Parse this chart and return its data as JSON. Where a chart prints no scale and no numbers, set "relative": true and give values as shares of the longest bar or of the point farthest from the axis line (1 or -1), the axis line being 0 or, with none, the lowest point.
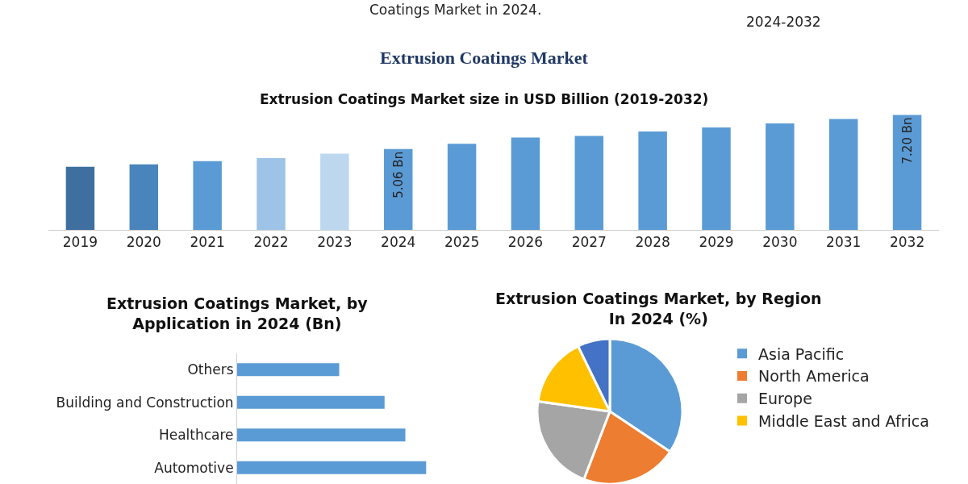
{
  "chart_data": [
    {
      "type": "bar",
      "title": "Extrusion Coatings Market",
      "subtitle": "Extrusion Coatings Market size in USD Billion (2019-2032)",
      "annotations": [
        "Coatings Market in 2024.",
        "2024-2032"
      ],
      "categories": [
        "2019",
        "2020",
        "2021",
        "2022",
        "2023",
        "2024",
        "2025",
        "2026",
        "2027",
        "2028",
        "2029",
        "2030",
        "2031",
        "2032"
      ],
      "values": [
        3.95,
        4.11,
        4.31,
        4.5,
        4.78,
        5.06,
        5.39,
        5.78,
        5.89,
        6.17,
        6.42,
        6.67,
        6.95,
        7.2
      ],
      "value_labels": [
        null,
        null,
        null,
        null,
        null,
        "5.06 Bn",
        null,
        null,
        null,
        null,
        null,
        null,
        null,
        "7.20 Bn"
      ],
      "colors": [
        "#3f6f9f",
        "#4a84bd",
        "#5b9bd5",
        "#9dc3e6",
        "#bdd7ee",
        "#5b9bd5",
        "#5b9bd5",
        "#5b9bd5",
        "#5b9bd5",
        "#5b9bd5",
        "#5b9bd5",
        "#5b9bd5",
        "#5b9bd5",
        "#5b9bd5"
      ],
      "tick_labels": "x"
    },
    {
      "type": "bar",
      "orientation": "horizontal",
      "relative": true,
      "title": "Extrusion Coatings Market, by Application in 2024 (Bn)",
      "categories": [
        "Others",
        "Building and Construction",
        "Healthcare",
        "Automotive"
      ],
      "values": [
        0.54,
        0.78,
        0.89,
        1.0
      ],
      "color": "#5b9bd5"
    },
    {
      "type": "pie",
      "title": "Extrusion Coatings Market, by Region In 2024 (%)",
      "categories": [
        "Asia Pacific",
        "North America",
        "Europe",
        "Middle East and Africa",
        null
      ],
      "values": [
        34.4,
        21.4,
        21.4,
        15.6,
        7.2
      ],
      "colors": [
        "#5b9bd5",
        "#ed7d31",
        "#a5a5a5",
        "#ffc000",
        "#4472c4"
      ],
      "legend": "right"
    }
  ]
}
